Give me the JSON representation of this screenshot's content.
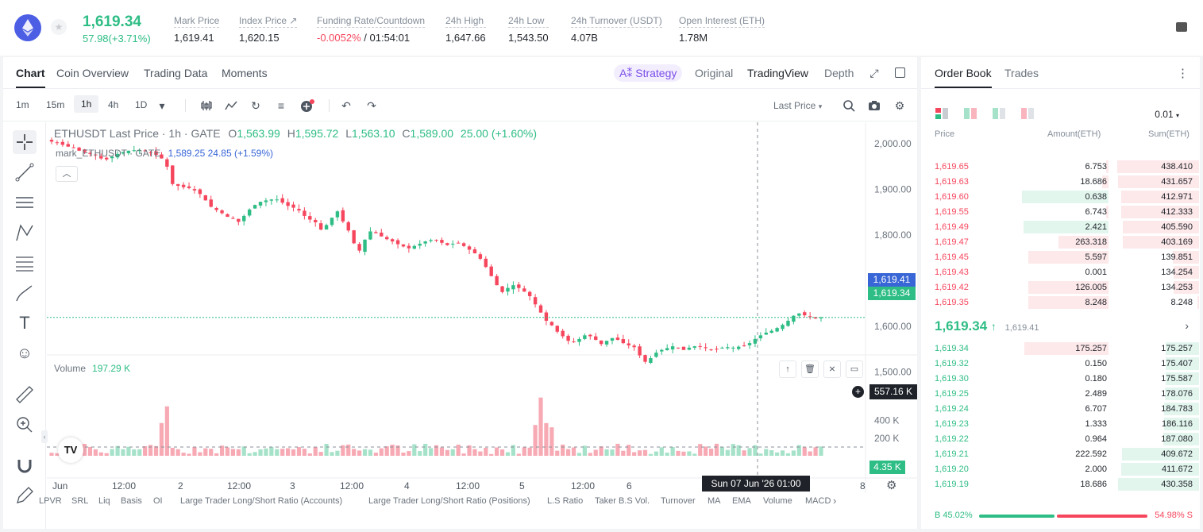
{
  "header": {
    "last_price": "1,619.34",
    "change": "57.98(+3.71%)",
    "stats": [
      {
        "label": "Mark Price",
        "value": "1,619.41"
      },
      {
        "label": "Index Price ↗",
        "value": "1,620.15"
      },
      {
        "label": "Funding Rate/Countdown",
        "value_neg": "-0.0052%",
        "value_rest": " / 01:54:01"
      },
      {
        "label": "24h High",
        "value": "1,647.66"
      },
      {
        "label": "24h Low",
        "value": "1,543.50"
      },
      {
        "label": "24h Turnover (USDT)",
        "value": "4.07B"
      },
      {
        "label": "Open Interest (ETH)",
        "value": "1.78M"
      }
    ]
  },
  "chart_tabs": [
    "Chart",
    "Coin Overview",
    "Trading Data",
    "Moments"
  ],
  "strategy_label": "A⁑ Strategy",
  "view_tabs": [
    "Original",
    "TradingView",
    "Depth"
  ],
  "timeframes": [
    "1m",
    "15m",
    "1h",
    "4h",
    "1D"
  ],
  "price_type": "Last Price",
  "legend": {
    "symbol": "ETHUSDT Last Price · 1h · GATE",
    "o_label": "O",
    "o": "1,563.99",
    "h_label": "H",
    "h": "1,595.72",
    "l_label": "L",
    "l": "1,563.10",
    "c_label": "C",
    "c": "1,589.00",
    "change": "25.00 (+1.60%)",
    "mark_text": "mark_ETHUSDT · GATE",
    "mark_values": "1,589.25  24.85 (+1.59%)"
  },
  "volume_legend": {
    "label": "Volume",
    "value": "197.29 K"
  },
  "price_axis": [
    "2,000.00",
    "1,900.00",
    "1,800.00",
    "1,700.00",
    "1,600.00",
    "1,500.00"
  ],
  "volume_axis": [
    "400 K",
    "200 K"
  ],
  "tags": {
    "mark": "1,619.41",
    "last": "1,619.34",
    "vol_cursor": "557.16 K",
    "vol_last": "4.35 K",
    "time_cursor": "Sun 07 Jun '26   01:00"
  },
  "time_axis": [
    "Jun",
    "12:00",
    "2",
    "12:00",
    "3",
    "12:00",
    "4",
    "12:00",
    "5",
    "12:00",
    "6",
    "12:00",
    "8"
  ],
  "indicators": [
    "LPVR",
    "SRL",
    "Liq",
    "Basis",
    "OI",
    "Large Trader Long/Short Ratio (Accounts)",
    "Large Trader Long/Short Ratio (Positions)",
    "L.S Ratio",
    "Taker B.S Vol.",
    "Turnover",
    "MA",
    "EMA",
    "Volume",
    "MACD"
  ],
  "colors": {
    "up": "#2ebd85",
    "down": "#f6465d",
    "accent": "#7a4ee8"
  },
  "chart_data": {
    "type": "candlestick",
    "close_path_hourly": [
      2005,
      2002,
      1998,
      1994,
      1992,
      1985,
      1982,
      1978,
      1975,
      1968,
      1966,
      1972,
      1978,
      1982,
      1985,
      1986,
      1986,
      1984,
      1981,
      1976,
      1968,
      1950,
      1912,
      1908,
      1905,
      1903,
      1898,
      1890,
      1876,
      1862,
      1855,
      1848,
      1840,
      1836,
      1829,
      1842,
      1856,
      1866,
      1873,
      1876,
      1878,
      1878,
      1871,
      1864,
      1860,
      1854,
      1842,
      1834,
      1828,
      1812,
      1822,
      1838,
      1852,
      1830,
      1810,
      1782,
      1766,
      1790,
      1808,
      1804,
      1797,
      1791,
      1786,
      1780,
      1775,
      1771,
      1776,
      1781,
      1786,
      1789,
      1788,
      1783,
      1778,
      1781,
      1783,
      1776,
      1768,
      1760,
      1748,
      1730,
      1710,
      1690,
      1675,
      1684,
      1690,
      1684,
      1676,
      1666,
      1648,
      1630,
      1612,
      1602,
      1588,
      1578,
      1568,
      1566,
      1572,
      1580,
      1578,
      1570,
      1561,
      1568,
      1574,
      1570,
      1563,
      1558,
      1554,
      1536,
      1522,
      1530,
      1542,
      1548,
      1552,
      1556,
      1552,
      1548,
      1553,
      1556,
      1555,
      1552,
      1549,
      1550,
      1553,
      1554,
      1553,
      1555,
      1557,
      1563,
      1572,
      1580,
      1586,
      1590,
      1596,
      1603,
      1612,
      1623,
      1628,
      1624,
      1620,
      1617,
      1619
    ],
    "y_range": [
      1490,
      2030
    ],
    "volume_range_k": [
      0,
      720
    ],
    "time_axis_labels": [
      "Jun",
      "12:00",
      "2",
      "12:00",
      "3",
      "12:00",
      "4",
      "12:00",
      "5",
      "12:00",
      "6",
      "12:00",
      "8"
    ]
  },
  "orderbook": {
    "tabs": [
      "Order Book",
      "Trades"
    ],
    "precision": "0.01",
    "headers": [
      "Price",
      "Amount(ETH)",
      "Sum(ETH)"
    ],
    "asks": [
      {
        "price": "1,619.65",
        "amount": "6.753",
        "sum": "438.410",
        "amt_frac": 0.03,
        "sum_frac": 0.99
      },
      {
        "price": "1,619.63",
        "amount": "18.686",
        "sum": "431.657",
        "amt_frac": 0.07,
        "sum_frac": 0.98
      },
      {
        "price": "1,619.60",
        "amount": "0.638",
        "sum": "412.971",
        "amt_frac": 0.95,
        "sum_frac": 0.94
      },
      {
        "price": "1,619.55",
        "amount": "6.743",
        "sum": "412.333",
        "amt_frac": 0.03,
        "sum_frac": 0.94
      },
      {
        "price": "1,619.49",
        "amount": "2.421",
        "sum": "405.590",
        "amt_frac": 0.93,
        "sum_frac": 0.92
      },
      {
        "price": "1,619.47",
        "amount": "263.318",
        "sum": "403.169",
        "amt_frac": 0.55,
        "sum_frac": 0.92
      },
      {
        "price": "1,619.45",
        "amount": "5.597",
        "sum": "139.851",
        "amt_frac": 0.88,
        "sum_frac": 0.32
      },
      {
        "price": "1,619.43",
        "amount": "0.001",
        "sum": "134.254",
        "amt_frac": 0.0,
        "sum_frac": 0.31
      },
      {
        "price": "1,619.42",
        "amount": "126.005",
        "sum": "134.253",
        "amt_frac": 0.88,
        "sum_frac": 0.31
      },
      {
        "price": "1,619.35",
        "amount": "8.248",
        "sum": "8.248",
        "amt_frac": 0.88,
        "sum_frac": 0.02
      }
    ],
    "mid_price": "1,619.34",
    "mid_arrow": "↑",
    "mid_mark": "1,619.41",
    "bids": [
      {
        "price": "1,619.34",
        "amount": "175.257",
        "sum": "175.257",
        "amt_frac": 0.92,
        "sum_frac": 0.4
      },
      {
        "price": "1,619.32",
        "amount": "0.150",
        "sum": "175.407",
        "amt_frac": 0.0,
        "sum_frac": 0.4
      },
      {
        "price": "1,619.30",
        "amount": "0.180",
        "sum": "175.587",
        "amt_frac": 0.0,
        "sum_frac": 0.4
      },
      {
        "price": "1,619.25",
        "amount": "2.489",
        "sum": "178.076",
        "amt_frac": 0.0,
        "sum_frac": 0.41
      },
      {
        "price": "1,619.24",
        "amount": "6.707",
        "sum": "184.783",
        "amt_frac": 0.0,
        "sum_frac": 0.42
      },
      {
        "price": "1,619.23",
        "amount": "1.333",
        "sum": "186.116",
        "amt_frac": 0.0,
        "sum_frac": 0.42
      },
      {
        "price": "1,619.22",
        "amount": "0.964",
        "sum": "187.080",
        "amt_frac": 0.0,
        "sum_frac": 0.43
      },
      {
        "price": "1,619.21",
        "amount": "222.592",
        "sum": "409.672",
        "amt_frac": 0.0,
        "sum_frac": 0.93
      },
      {
        "price": "1,619.20",
        "amount": "2.000",
        "sum": "411.672",
        "amt_frac": 0.0,
        "sum_frac": 0.94
      },
      {
        "price": "1,619.19",
        "amount": "18.686",
        "sum": "430.358",
        "amt_frac": 0.0,
        "sum_frac": 0.98
      }
    ],
    "buy_ratio": "B 45.02%",
    "sell_ratio": "54.98% S",
    "buy_frac": 0.4502
  }
}
